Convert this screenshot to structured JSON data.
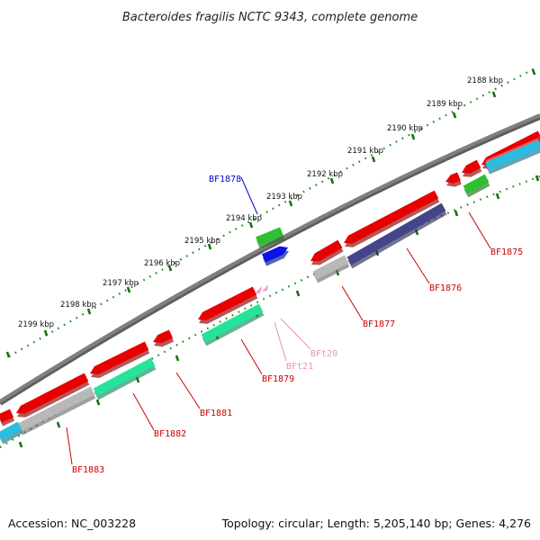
{
  "title": "Bacteroides fragilis NCTC 9343, complete genome",
  "footer": {
    "accession": "Accession: NC_003228",
    "summary": "Topology: circular; Length: 5,205,140 bp; Genes: 4,276"
  },
  "colors": {
    "backbone": "#808080",
    "ticks": "#1a8a1a",
    "red": "#e80000",
    "teal": "#25e39a",
    "grey": "#b8b8b8",
    "navy": "#44448a",
    "cyan": "#2bbde0",
    "green": "#2fbf2f",
    "blue": "#0a14e8",
    "pink": "#f0a0cc",
    "label_blue": "#0000cc",
    "label_red": "#cc0000",
    "label_pink": "#e890c0"
  },
  "kbp_labels": [
    {
      "text": "2188 kbp"
    },
    {
      "text": "2189 kbp"
    },
    {
      "text": "2190 kbp"
    },
    {
      "text": "2191 kbp"
    },
    {
      "text": "2192 kbp"
    },
    {
      "text": "2193 kbp"
    },
    {
      "text": "2194 kbp"
    },
    {
      "text": "2195 kbp"
    },
    {
      "text": "2196 kbp"
    },
    {
      "text": "2197 kbp"
    },
    {
      "text": "2198 kbp"
    },
    {
      "text": "2199 kbp"
    }
  ],
  "gene_labels": [
    {
      "text": "BF1875",
      "color": "label_red"
    },
    {
      "text": "BF1876",
      "color": "label_red"
    },
    {
      "text": "BF1877",
      "color": "label_red"
    },
    {
      "text": "BF1878",
      "color": "label_blue"
    },
    {
      "text": "BF1879",
      "color": "label_red"
    },
    {
      "text": "BFt20",
      "color": "label_pink"
    },
    {
      "text": "BFt21",
      "color": "label_pink"
    },
    {
      "text": "BF1881",
      "color": "label_red"
    },
    {
      "text": "BF1882",
      "color": "label_red"
    },
    {
      "text": "BF1883",
      "color": "label_red"
    }
  ]
}
